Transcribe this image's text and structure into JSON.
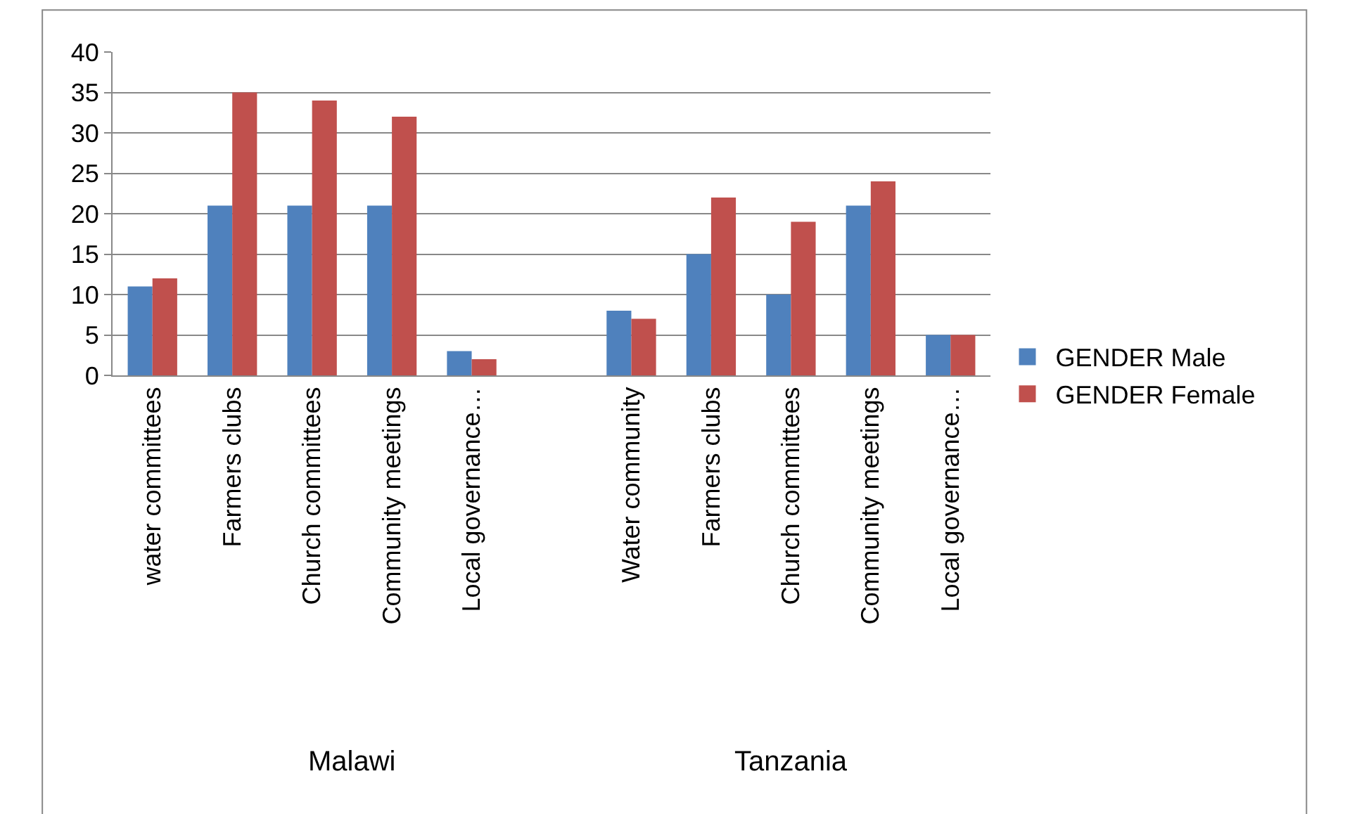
{
  "chart_data": {
    "type": "bar",
    "categories": [
      "water committees",
      "Farmers clubs",
      "Church committees",
      "Community meetings",
      "Local governance…",
      null,
      "Water community",
      "Farmers clubs",
      "Church committees",
      "Community meetings",
      "Local governance…"
    ],
    "series": [
      {
        "name": "GENDER Male",
        "color": "#4f81bd",
        "values": [
          11,
          21,
          21,
          21,
          3,
          null,
          8,
          15,
          10,
          21,
          5
        ]
      },
      {
        "name": "GENDER Female",
        "color": "#c0504d",
        "values": [
          12,
          35,
          34,
          32,
          2,
          null,
          7,
          22,
          19,
          24,
          5
        ]
      }
    ],
    "annotations": [
      "Malawi",
      "Tanzania"
    ],
    "ylim": [
      0,
      40
    ],
    "yticks": [
      0,
      5,
      10,
      15,
      20,
      25,
      30,
      35,
      40
    ],
    "grid": "y",
    "legend": "right"
  }
}
